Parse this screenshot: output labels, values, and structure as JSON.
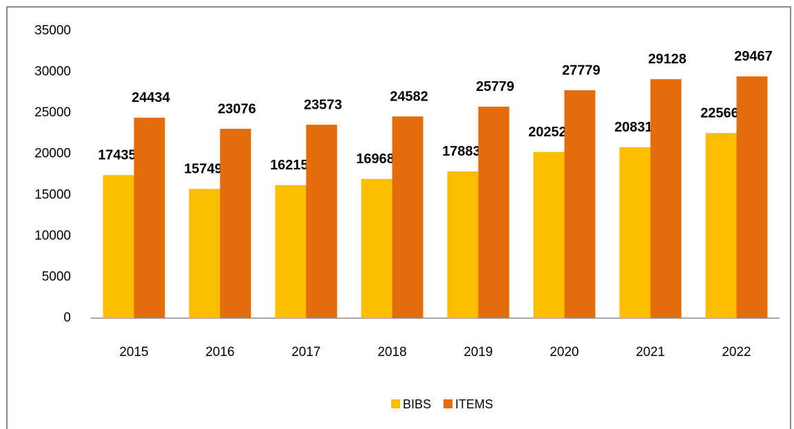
{
  "chart_data": {
    "type": "bar",
    "categories": [
      "2015",
      "2016",
      "2017",
      "2018",
      "2019",
      "2020",
      "2021",
      "2022"
    ],
    "series": [
      {
        "name": "BIBS",
        "color": "#fbbd00",
        "values": [
          17435,
          15749,
          16215,
          16968,
          17883,
          20252,
          20831,
          22566
        ]
      },
      {
        "name": "ITEMS",
        "color": "#e46c0a",
        "values": [
          24434,
          23076,
          23573,
          24582,
          25779,
          27779,
          29128,
          29467
        ]
      }
    ],
    "ylim": [
      0,
      35000
    ],
    "yticks": [
      0,
      5000,
      10000,
      15000,
      20000,
      25000,
      30000,
      35000
    ],
    "grid": false,
    "legend": "bottom"
  }
}
